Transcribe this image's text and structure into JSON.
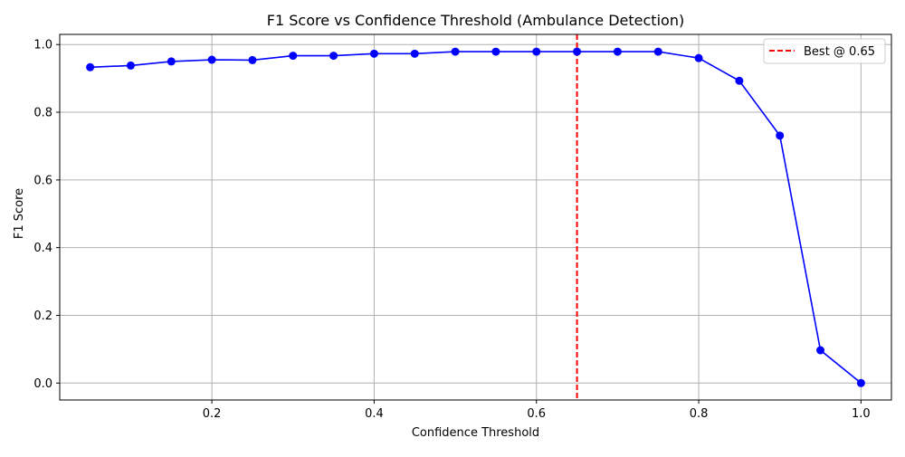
{
  "chart_data": {
    "type": "line",
    "title": "F1 Score vs Confidence Threshold (Ambulance Detection)",
    "xlabel": "Confidence Threshold",
    "ylabel": "F1 Score",
    "xlim": [
      0.0125,
      1.0375
    ],
    "ylim": [
      -0.05,
      1.03
    ],
    "x_ticks": [
      0.2,
      0.4,
      0.6,
      0.8,
      1.0
    ],
    "x_tick_labels": [
      "0.2",
      "0.4",
      "0.6",
      "0.8",
      "1.0"
    ],
    "y_ticks": [
      0.0,
      0.2,
      0.4,
      0.6,
      0.8,
      1.0
    ],
    "y_tick_labels": [
      "0.0",
      "0.2",
      "0.4",
      "0.6",
      "0.8",
      "1.0"
    ],
    "grid": true,
    "legend_position": "top-right",
    "series": [
      {
        "color": "#0000ff",
        "marker": "circle",
        "x": [
          0.05,
          0.1,
          0.15,
          0.2,
          0.25,
          0.3,
          0.35,
          0.4,
          0.45,
          0.5,
          0.55,
          0.6,
          0.65,
          0.7,
          0.75,
          0.8,
          0.85,
          0.9,
          0.95,
          1.0
        ],
        "y": [
          0.933,
          0.938,
          0.95,
          0.955,
          0.954,
          0.967,
          0.967,
          0.973,
          0.973,
          0.979,
          0.979,
          0.979,
          0.979,
          0.979,
          0.979,
          0.96,
          0.893,
          0.731,
          0.097,
          0.0
        ]
      }
    ],
    "reference_lines": [
      {
        "orientation": "vertical",
        "x": 0.65,
        "color": "#ff0000",
        "style": "dashed",
        "label": "Best @ 0.65"
      }
    ]
  }
}
